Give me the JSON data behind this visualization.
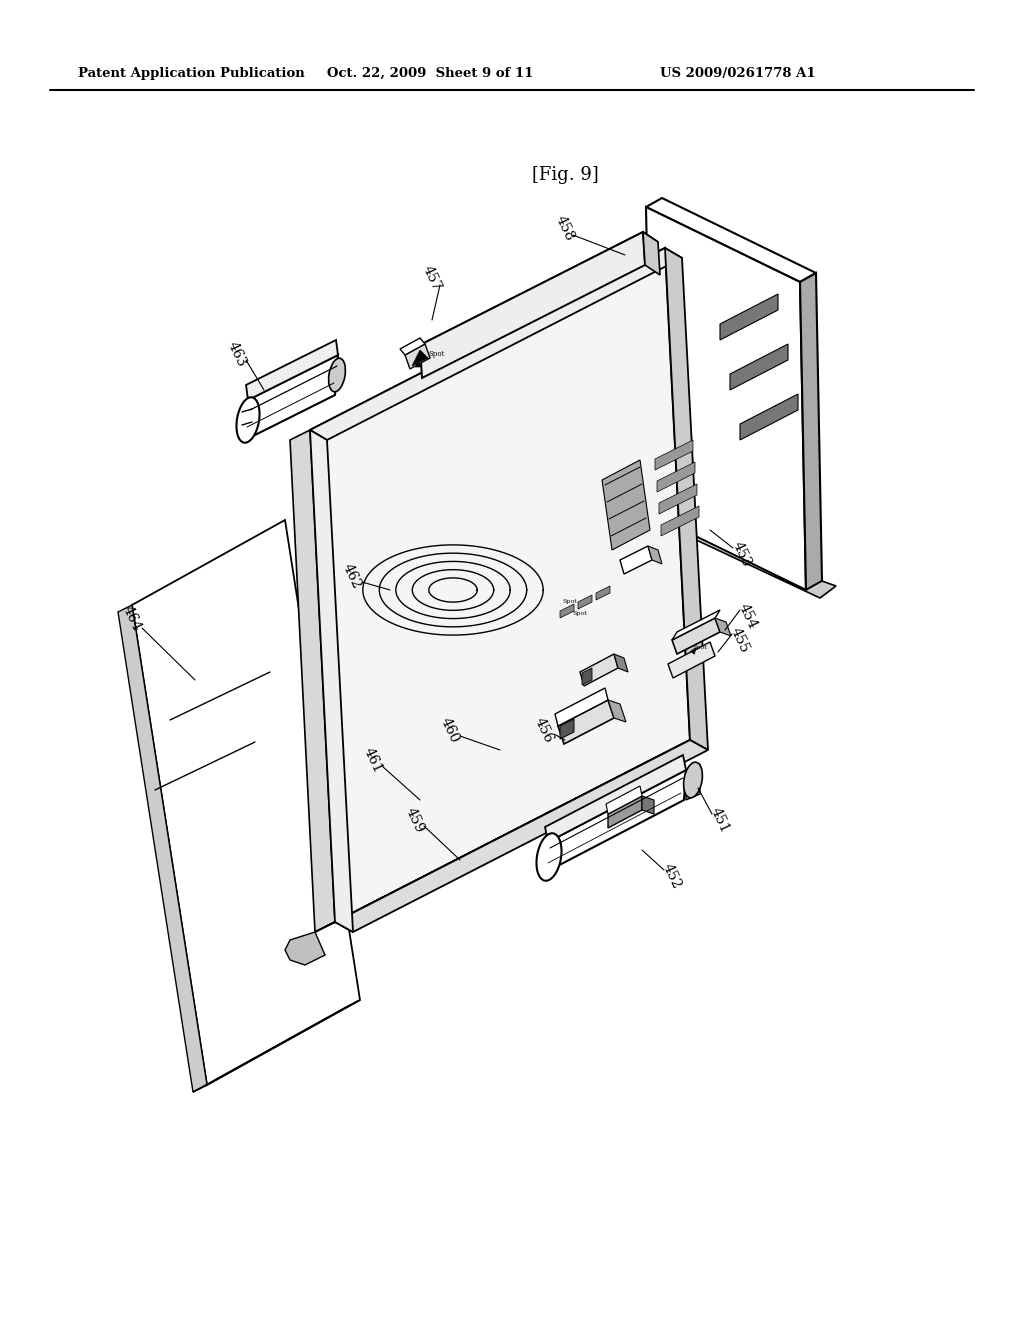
{
  "bg_color": "#ffffff",
  "header_left": "Patent Application Publication",
  "header_center": "Oct. 22, 2009  Sheet 9 of 11",
  "header_right": "US 2009/0261778 A1",
  "fig_label": "[Fig. 9]"
}
